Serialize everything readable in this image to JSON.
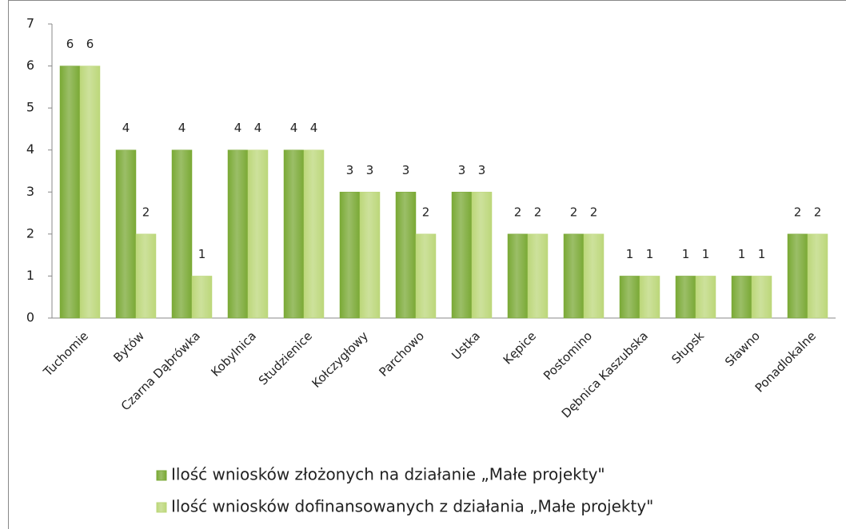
{
  "chart_data": {
    "type": "bar",
    "categories": [
      "Tuchomie",
      "Bytów",
      "Czarna Dąbrówka",
      "Kobylnica",
      "Studzienice",
      "Kołczygłowy",
      "Parchowo",
      "Ustka",
      "Kępice",
      "Postomino",
      "Dębnica Kaszubska",
      "Słupsk",
      "Sławno",
      "Ponadlokalne"
    ],
    "series": [
      {
        "name": "Ilość wniosków złożonych na działanie „Małe projekty\"",
        "color": "#7aa935",
        "values": [
          6,
          4,
          4,
          4,
          4,
          3,
          3,
          3,
          2,
          2,
          1,
          1,
          1,
          2
        ]
      },
      {
        "name": "Ilość wniosków dofinansowanych z działania „Małe projekty\"",
        "color": "#bcd77a",
        "values": [
          6,
          2,
          1,
          4,
          4,
          3,
          2,
          3,
          2,
          2,
          1,
          1,
          1,
          2
        ]
      }
    ],
    "ylim": [
      0,
      7
    ],
    "yticks": [
      0,
      1,
      2,
      3,
      4,
      5,
      6,
      7
    ],
    "grid": false
  }
}
